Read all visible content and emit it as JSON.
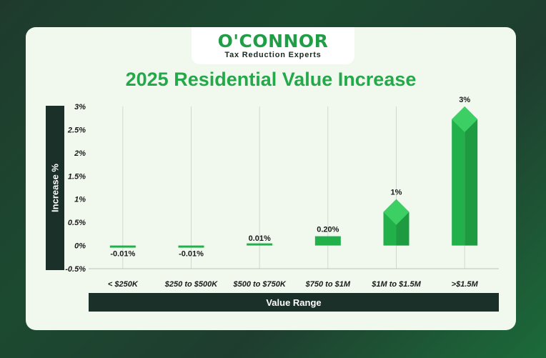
{
  "brand": {
    "name": "O'CONNOR",
    "tagline": "Tax Reduction Experts"
  },
  "colors": {
    "bar_main": "#22b04b",
    "bar_dark": "#1e9a41",
    "bar_light": "#3ccf63",
    "panel_dark": "#1c302a"
  },
  "chart_data": {
    "type": "bar",
    "title": "2025 Residential Value Increase",
    "xlabel": "Value Range",
    "ylabel": "Increase %",
    "categories": [
      "< $250K",
      "$250 to $500K",
      "$500 to $750K",
      "$750 to $1M",
      "$1M to $1.5M",
      ">$1.5M"
    ],
    "values": [
      -0.01,
      -0.01,
      0.01,
      0.2,
      1,
      3
    ],
    "data_labels": [
      "-0.01%",
      "-0.01%",
      "0.01%",
      "0.20%",
      "1%",
      "3%"
    ],
    "yticks": [
      3,
      2.5,
      2,
      1.5,
      1,
      0.5,
      0,
      -0.5
    ],
    "ytick_labels": [
      "3%",
      "2.5%",
      "2%",
      "1.5%",
      "1%",
      "0.5%",
      "0%",
      "-0.5%"
    ],
    "ylim": [
      -0.5,
      3
    ],
    "grid": "vertical",
    "legend": "none"
  }
}
